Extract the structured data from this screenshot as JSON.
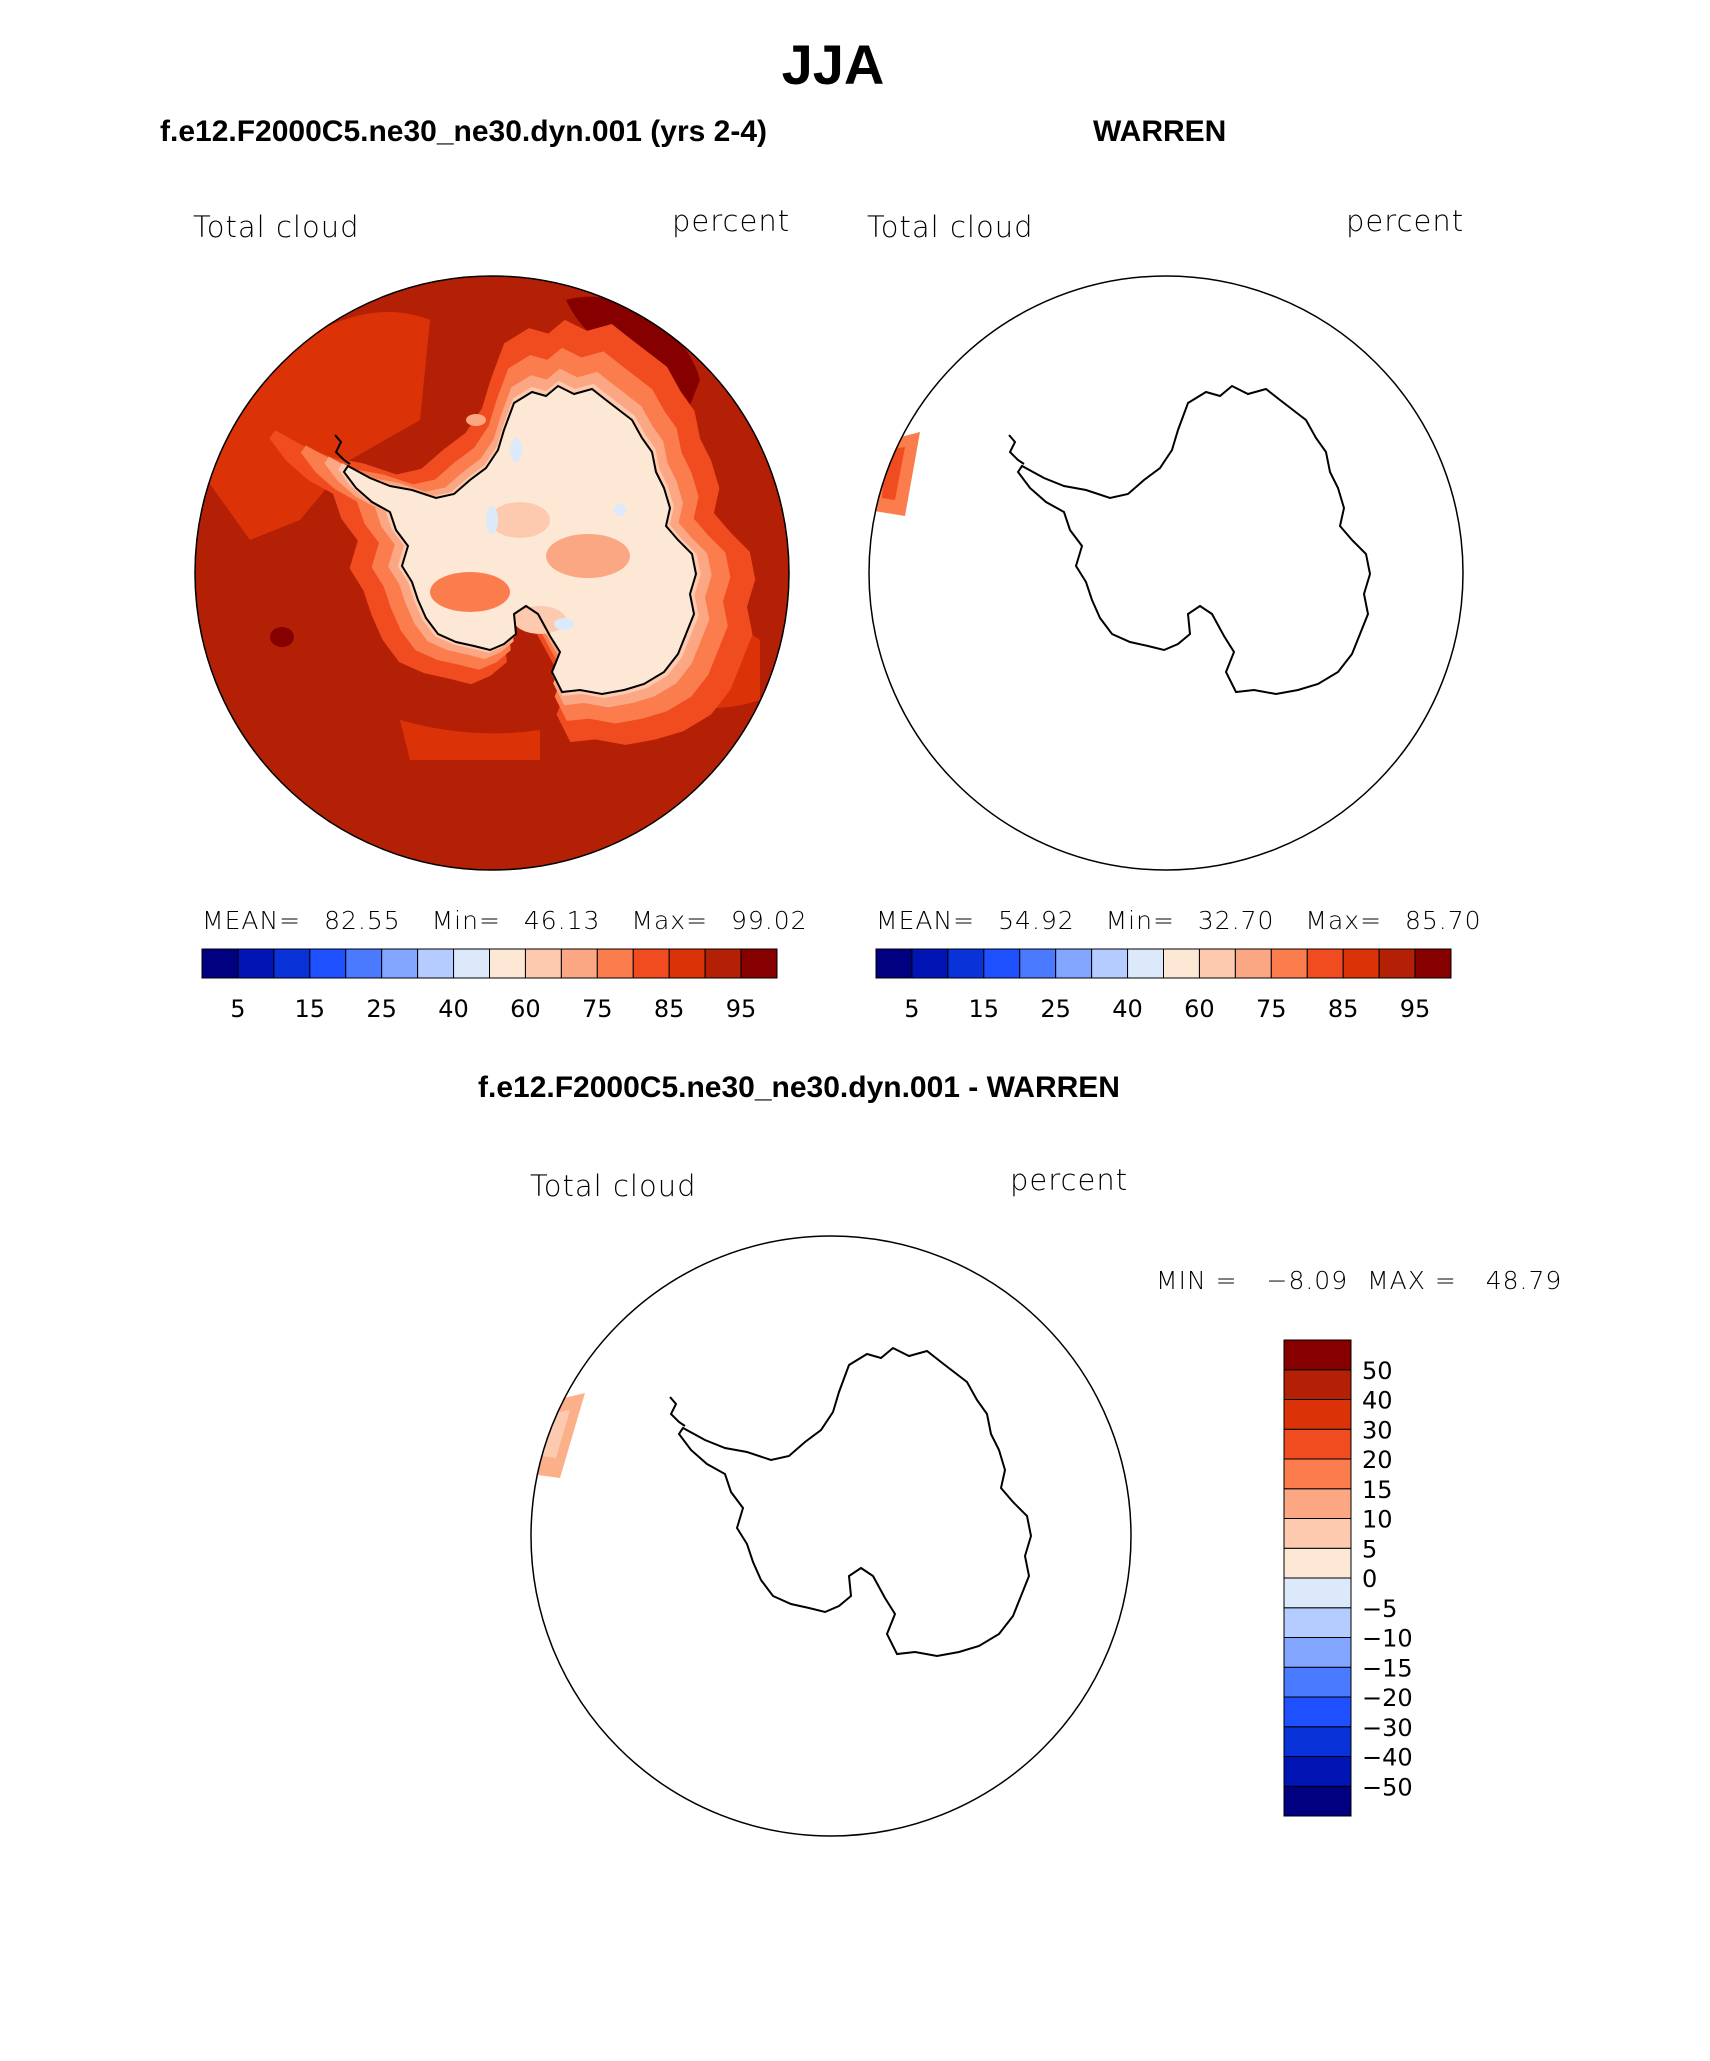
{
  "title": "JJA",
  "panels": [
    {
      "title": "f.e12.F2000C5.ne30_ne30.dyn.001 (yrs 2-4)",
      "left_label": "Total cloud",
      "right_label": "percent",
      "stats": {
        "mean_label": "MEAN=",
        "mean": "82.55",
        "min_label": "Min=",
        "min": "46.13",
        "max_label": "Max=",
        "max": "99.02"
      }
    },
    {
      "title": "WARREN",
      "left_label": "Total cloud",
      "right_label": "percent",
      "stats": {
        "mean_label": "MEAN=",
        "mean": "54.92",
        "min_label": "Min=",
        "min": "32.70",
        "max_label": "Max=",
        "max": "85.70"
      }
    },
    {
      "title": "f.e12.F2000C5.ne30_ne30.dyn.001 - WARREN",
      "left_label": "Total cloud",
      "right_label": "percent",
      "minmax": {
        "min_label": "MIN =",
        "min": "−8.09",
        "max_label": "MAX =",
        "max": "48.79"
      }
    }
  ],
  "colorbar_fields": {
    "colors": [
      "#000080",
      "#0015b3",
      "#0a32d9",
      "#1e50ff",
      "#4a7aff",
      "#82a6ff",
      "#b4ccff",
      "#dbe9fb",
      "#fde8d6",
      "#fdcab0",
      "#fca784",
      "#fb7c4d",
      "#f04c20",
      "#dc3208",
      "#b42005",
      "#860000"
    ],
    "tick_labels": [
      "5",
      "15",
      "25",
      "40",
      "60",
      "75",
      "85",
      "95"
    ]
  },
  "colorbar_diff": {
    "colors": [
      "#000080",
      "#0015b3",
      "#0a32d9",
      "#1e50ff",
      "#4a7aff",
      "#82a6ff",
      "#b4ccff",
      "#dbe9fb",
      "#fde8d6",
      "#fdcab0",
      "#fca784",
      "#fb7c4d",
      "#f04c20",
      "#dc3208",
      "#b42005",
      "#860000"
    ],
    "tick_labels": [
      "50",
      "40",
      "30",
      "20",
      "15",
      "10",
      "5",
      "0",
      "−5",
      "−10",
      "−15",
      "−20",
      "−30",
      "−40",
      "−50"
    ]
  }
}
